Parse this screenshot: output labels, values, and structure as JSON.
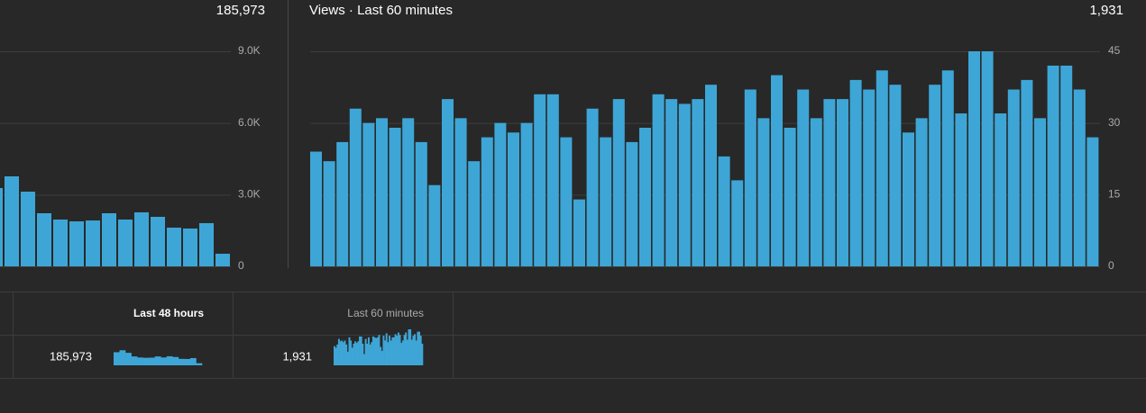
{
  "chart_data": [
    {
      "type": "bar",
      "total": "185,973",
      "color": "#3ea6d6",
      "values": [
        3276,
        3766,
        3125,
        2222,
        1958,
        1883,
        1920,
        2222,
        1958,
        2259,
        2071,
        1619,
        1582,
        1807,
        527
      ],
      "ylim": [
        0,
        9000
      ],
      "yticks": [
        0,
        {
          "value": 3000,
          "label": "3.0K"
        },
        {
          "value": 6000,
          "label": "6.0K"
        },
        {
          "value": 9000,
          "label": "9.0K"
        }
      ],
      "grid": true
    },
    {
      "type": "bar",
      "title": "Views · Last 60 minutes",
      "total": "1,931",
      "color": "#3ea6d6",
      "values": [
        24,
        22,
        26,
        33,
        30,
        31,
        29,
        31,
        26,
        17,
        35,
        31,
        22,
        27,
        30,
        28,
        30,
        36,
        36,
        27,
        14,
        33,
        27,
        35,
        26,
        29,
        36,
        35,
        34,
        35,
        38,
        23,
        18,
        37,
        31,
        40,
        29,
        37,
        31,
        35,
        35,
        39,
        37,
        41,
        38,
        28,
        31,
        38,
        41,
        32,
        45,
        45,
        32,
        37,
        39,
        31,
        42,
        42,
        37,
        27
      ],
      "ylim": [
        0,
        45
      ],
      "yticks": [
        0,
        15,
        30,
        45
      ],
      "grid": true
    }
  ],
  "table": {
    "headers": [
      "Last 48 hours",
      "Last 60 minutes"
    ],
    "rows": [
      [
        "185,973",
        "1,931"
      ]
    ]
  }
}
